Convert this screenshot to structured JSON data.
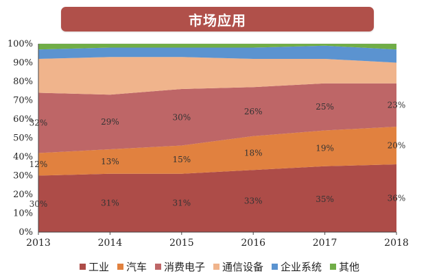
{
  "title": "市场应用",
  "colors": {
    "banner": "#B0504A",
    "grid": "#d9d9d9",
    "axis": "#444444"
  },
  "chart_data": {
    "type": "area",
    "stacked": true,
    "title": "市场应用",
    "categories": [
      "2013",
      "2014",
      "2015",
      "2016",
      "2017",
      "2018"
    ],
    "ylim": [
      0,
      100
    ],
    "yticks": [
      "0%",
      "10%",
      "20%",
      "30%",
      "40%",
      "50%",
      "60%",
      "70%",
      "80%",
      "90%",
      "100%"
    ],
    "grid": true,
    "legend_position": "bottom",
    "series": [
      {
        "name": "工业",
        "color": "#AD4C48",
        "values": [
          30,
          31,
          31,
          33,
          35,
          36
        ],
        "labels": [
          "30%",
          "31%",
          "31%",
          "33%",
          "35%",
          "36%"
        ]
      },
      {
        "name": "汽车",
        "color": "#E1813F",
        "values": [
          12,
          13,
          15,
          18,
          19,
          20
        ],
        "labels": [
          "12%",
          "13%",
          "15%",
          "18%",
          "19%",
          "20%"
        ]
      },
      {
        "name": "消费电子",
        "color": "#BE6667",
        "values": [
          32,
          29,
          30,
          26,
          25,
          23
        ],
        "labels": [
          "32%",
          "29%",
          "30%",
          "26%",
          "25%",
          "23%"
        ]
      },
      {
        "name": "通信设备",
        "color": "#F0B48C",
        "values": [
          18,
          20,
          17,
          15,
          13,
          11
        ],
        "labels": []
      },
      {
        "name": "企业系统",
        "color": "#5B93D0",
        "values": [
          5,
          5,
          5,
          6,
          7,
          7
        ],
        "labels": []
      },
      {
        "name": "其他",
        "color": "#70AD47",
        "values": [
          3,
          2,
          2,
          2,
          1,
          3
        ],
        "labels": []
      }
    ]
  }
}
